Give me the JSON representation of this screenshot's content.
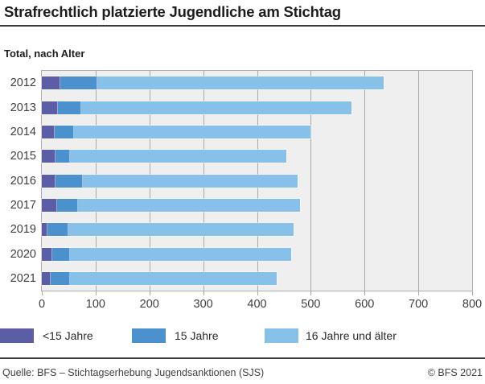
{
  "header": {
    "title": "Strafrechtlich platzierte Jugendliche am Stichtag",
    "subtitle": "Total, nach Alter"
  },
  "chart_data": {
    "type": "bar",
    "orientation": "horizontal",
    "stacked": true,
    "categories": [
      "2012",
      "2013",
      "2014",
      "2015",
      "2016",
      "2017",
      "2019",
      "2020",
      "2021"
    ],
    "series": [
      {
        "name": "<15 Jahre",
        "color": "#5b5ea4",
        "values": [
          35,
          30,
          24,
          26,
          26,
          29,
          11,
          19,
          16
        ]
      },
      {
        "name": "15 Jahre",
        "color": "#4a91ce",
        "values": [
          68,
          44,
          36,
          26,
          50,
          39,
          39,
          34,
          36
        ]
      },
      {
        "name": "16 Jahre und älter",
        "color": "#87c1ea",
        "values": [
          532,
          501,
          440,
          403,
          400,
          412,
          418,
          411,
          384
        ]
      }
    ],
    "totals": [
      635,
      575,
      500,
      455,
      476,
      480,
      468,
      464,
      436
    ],
    "x_ticks": [
      0,
      100,
      200,
      300,
      400,
      500,
      600,
      700,
      800
    ],
    "xlim": [
      0,
      800
    ],
    "grid": "vertical",
    "legend_position": "bottom",
    "plot_background": "#efefef",
    "gridline_color": "#a9a9a9"
  },
  "legend": {
    "items": [
      {
        "label": "<15 Jahre",
        "color": "#5b5ea4"
      },
      {
        "label": "15 Jahre",
        "color": "#4a91ce"
      },
      {
        "label": "16 Jahre und älter",
        "color": "#87c1ea"
      }
    ]
  },
  "footer": {
    "source": "Quelle: BFS – Stichtagserhebung Jugendsanktionen (SJS)",
    "copyright": "© BFS 2021"
  }
}
